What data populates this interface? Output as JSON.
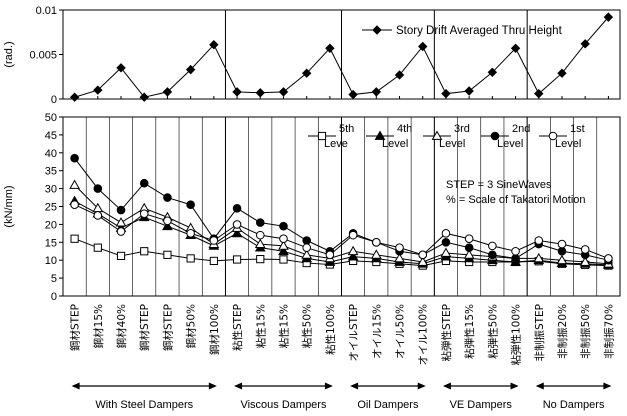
{
  "chart_data": [
    {
      "type": "line",
      "ylabel": "(rad.)",
      "ylim": [
        0,
        0.01
      ],
      "yticks": [
        "0",
        "0.005",
        "0.01"
      ],
      "ytick_values": [
        0,
        0.005,
        0.01
      ],
      "grid": "vertical lines between groups",
      "legend": "top-right",
      "series": [
        {
          "name": "Story Drift Averaged Thru Height",
          "marker": "diamond-filled",
          "values": [
            0.0002,
            0.001,
            0.0035,
            0.0002,
            0.0008,
            0.0033,
            0.0061,
            0.0008,
            0.0007,
            0.0008,
            0.0029,
            0.0057,
            0.0005,
            0.0008,
            0.0027,
            0.0059,
            0.0006,
            0.0009,
            0.003,
            0.0057,
            0.0006,
            0.0029,
            0.0062,
            0.0092
          ]
        }
      ]
    },
    {
      "type": "line",
      "ylabel": "(kN/mm)",
      "ylim": [
        0,
        50
      ],
      "yticks": [
        "0",
        "5",
        "10",
        "15",
        "20",
        "25",
        "30",
        "35",
        "40",
        "45",
        "50"
      ],
      "ytick_values": [
        0,
        5,
        10,
        15,
        20,
        25,
        30,
        35,
        40,
        45,
        50
      ],
      "legend": "top-right",
      "annotations": [
        "STEP = 3 SineWaves",
        "% = Scale of Takatori Motion"
      ],
      "series": [
        {
          "name": "5th Leve",
          "marker": "square-open",
          "values": [
            16,
            13.5,
            11.2,
            12.5,
            11.5,
            10.5,
            9.8,
            10.2,
            10.3,
            10.2,
            9.2,
            8.8,
            9.8,
            9.5,
            9,
            8.5,
            9.8,
            9.5,
            9.5,
            9.5,
            9.7,
            9,
            8.7,
            8.5
          ]
        },
        {
          "name": "4th Level",
          "marker": "triangle-filled",
          "values": [
            26.5,
            23,
            19,
            22,
            19.5,
            17,
            14,
            17.5,
            13.5,
            12.5,
            10.5,
            9.5,
            11,
            10.5,
            9.5,
            9,
            11,
            10.5,
            10,
            9.5,
            10,
            9.2,
            9,
            8.7
          ]
        },
        {
          "name": "3rd Level",
          "marker": "triangle-open",
          "values": [
            31,
            24.5,
            20.5,
            24.5,
            22,
            19,
            14.5,
            19,
            14.5,
            14,
            11.5,
            10.5,
            12.5,
            11.5,
            10.5,
            9.5,
            12,
            11.5,
            11,
            10.5,
            10.5,
            10,
            9.5,
            9
          ]
        },
        {
          "name": "2nd Level",
          "marker": "circle-filled",
          "values": [
            38.5,
            30,
            24,
            31.5,
            27.5,
            25.5,
            16,
            24.5,
            20.5,
            19.5,
            15.5,
            12.5,
            17.5,
            15,
            12.5,
            11.5,
            15,
            13.5,
            11.5,
            10.5,
            14.5,
            12.5,
            11.5,
            10
          ]
        },
        {
          "name": "1st Level",
          "marker": "circle-open",
          "values": [
            25.5,
            22.5,
            18,
            23,
            21,
            17.5,
            15.5,
            20,
            17,
            16,
            13.5,
            11.5,
            17,
            15,
            13.5,
            11.5,
            17.5,
            16,
            14,
            12.5,
            15.5,
            14.5,
            13,
            10.5
          ]
        }
      ]
    }
  ],
  "categories": [
    "鋼材STEP",
    "鋼材15%",
    "鋼材40%",
    "鋼材STEP",
    "鋼材STEP",
    "鋼材50%",
    "鋼材100%",
    "粘性STEP",
    "粘性15%",
    "粘性15%",
    "粘性50%",
    "粘性100%",
    "オイルSTEP",
    "オイル15%",
    "オイル50%",
    "オイル100%",
    "粘弾性STEP",
    "粘弾性15%",
    "粘弾性50%",
    "粘弾性100%",
    "非制振STEP",
    "非制振20%",
    "非制振50%",
    "非制振70%"
  ],
  "groups": [
    {
      "label": "With Steel Dampers",
      "start": 0,
      "end": 6
    },
    {
      "label": "Viscous Dampers",
      "start": 7,
      "end": 11
    },
    {
      "label": "Oil Dampers",
      "start": 12,
      "end": 15
    },
    {
      "label": "VE Dampers",
      "start": 16,
      "end": 19
    },
    {
      "label": "No Dampers",
      "start": 20,
      "end": 23
    }
  ]
}
